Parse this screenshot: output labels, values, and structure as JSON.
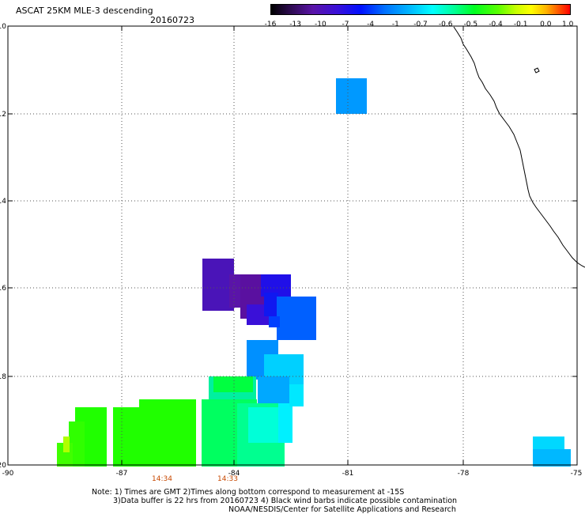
{
  "title": "ASCAT 25KM MLE-3 descending",
  "date": "20160723",
  "colorbar": {
    "ticks": [
      "-16",
      "-13",
      "-10",
      "-7",
      "-4",
      "-1",
      "-0.7",
      "-0.6",
      "-0.5",
      "-0.4",
      "-0.1",
      "0.0",
      "1.0"
    ]
  },
  "axes": {
    "lat_ticks": [
      "-10",
      "-12",
      "-14",
      "-16",
      "-18",
      "-20"
    ],
    "lon_ticks": [
      "-90",
      "-87",
      "-84",
      "-81",
      "-78",
      "-75"
    ],
    "lon_range": [
      -90,
      -75
    ],
    "lat_range": [
      -20,
      -10
    ],
    "grid": "dotted"
  },
  "pass_times": [
    "14:34",
    "14:33"
  ],
  "notes": {
    "line1": "Note: 1) Times are GMT 2)Times along bottom correspond to measurement at -15S",
    "line2": "3)Data buffer is 22 hrs from 20160723 4) Black wind barbs indicate possible contamination",
    "line3": "NOAA/NESDIS/Center for Satellite Applications and Research"
  }
}
